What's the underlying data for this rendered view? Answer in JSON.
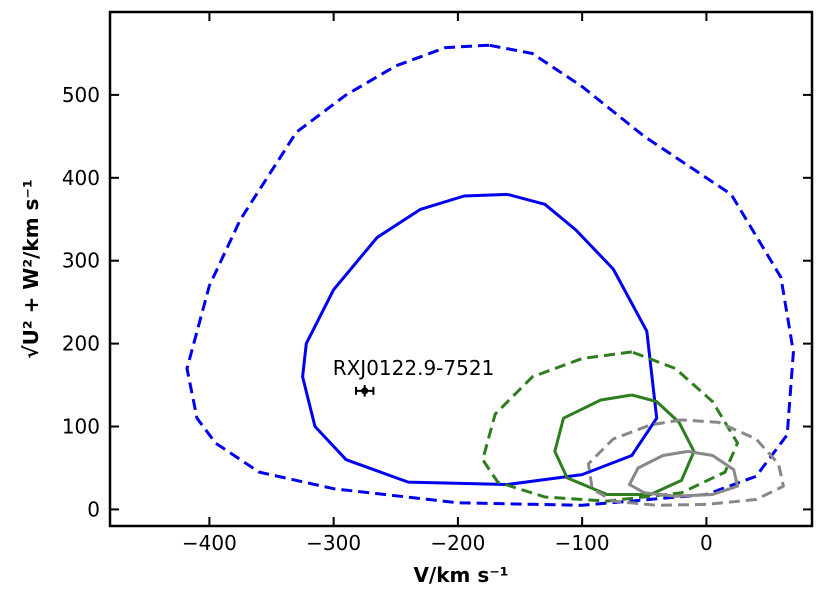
{
  "chart_data": {
    "type": "line",
    "xlabel": "V/km s⁻¹",
    "ylabel": "√U² + W²/km s⁻¹",
    "xlim": [
      -480,
      85
    ],
    "ylim": [
      -20,
      600
    ],
    "xticks": [
      -400,
      -300,
      -200,
      -100,
      0
    ],
    "xtick_labels": [
      "−400",
      "−300",
      "−200",
      "−100",
      "0"
    ],
    "yticks": [
      0,
      100,
      200,
      300,
      400,
      500
    ],
    "ytick_labels": [
      "0",
      "100",
      "200",
      "300",
      "400",
      "500"
    ],
    "grid": false,
    "series": [
      {
        "color": "#0000ee",
        "style": "dashed",
        "points": [
          [
            -175,
            560
          ],
          [
            -210,
            557
          ],
          [
            -250,
            535
          ],
          [
            -290,
            500
          ],
          [
            -330,
            455
          ],
          [
            -375,
            350
          ],
          [
            -400,
            270
          ],
          [
            -418,
            170
          ],
          [
            -410,
            110
          ],
          [
            -395,
            80
          ],
          [
            -360,
            45
          ],
          [
            -300,
            25
          ],
          [
            -200,
            8
          ],
          [
            -100,
            5
          ],
          [
            0,
            18
          ],
          [
            40,
            40
          ],
          [
            65,
            90
          ],
          [
            70,
            190
          ],
          [
            60,
            280
          ],
          [
            20,
            380
          ],
          [
            -50,
            450
          ],
          [
            -100,
            510
          ],
          [
            -140,
            550
          ],
          [
            -175,
            560
          ]
        ]
      },
      {
        "color": "#0000ee",
        "style": "solid",
        "points": [
          [
            -160,
            380
          ],
          [
            -195,
            378
          ],
          [
            -230,
            362
          ],
          [
            -265,
            328
          ],
          [
            -300,
            265
          ],
          [
            -322,
            200
          ],
          [
            -325,
            160
          ],
          [
            -315,
            100
          ],
          [
            -290,
            60
          ],
          [
            -240,
            33
          ],
          [
            -160,
            30
          ],
          [
            -100,
            42
          ],
          [
            -60,
            65
          ],
          [
            -40,
            110
          ],
          [
            -48,
            215
          ],
          [
            -75,
            290
          ],
          [
            -105,
            337
          ],
          [
            -130,
            368
          ],
          [
            -160,
            380
          ]
        ]
      },
      {
        "color": "#2e7d1e",
        "style": "dashed",
        "points": [
          [
            -60,
            190
          ],
          [
            -100,
            182
          ],
          [
            -140,
            160
          ],
          [
            -170,
            115
          ],
          [
            -180,
            60
          ],
          [
            -168,
            33
          ],
          [
            -130,
            15
          ],
          [
            -80,
            10
          ],
          [
            -20,
            20
          ],
          [
            15,
            45
          ],
          [
            25,
            80
          ],
          [
            5,
            130
          ],
          [
            -25,
            170
          ],
          [
            -60,
            190
          ]
        ]
      },
      {
        "color": "#2e7d1e",
        "style": "solid",
        "points": [
          [
            -60,
            138
          ],
          [
            -85,
            132
          ],
          [
            -115,
            110
          ],
          [
            -122,
            70
          ],
          [
            -112,
            38
          ],
          [
            -80,
            18
          ],
          [
            -45,
            18
          ],
          [
            -20,
            35
          ],
          [
            -10,
            70
          ],
          [
            -22,
            105
          ],
          [
            -40,
            130
          ],
          [
            -60,
            138
          ]
        ]
      },
      {
        "color": "#888888",
        "style": "dashed",
        "points": [
          [
            -20,
            108
          ],
          [
            -45,
            102
          ],
          [
            -75,
            85
          ],
          [
            -95,
            55
          ],
          [
            -92,
            25
          ],
          [
            -75,
            10
          ],
          [
            -40,
            5
          ],
          [
            0,
            6
          ],
          [
            40,
            12
          ],
          [
            62,
            28
          ],
          [
            58,
            55
          ],
          [
            40,
            85
          ],
          [
            10,
            105
          ],
          [
            -20,
            108
          ]
        ]
      },
      {
        "color": "#888888",
        "style": "solid",
        "points": [
          [
            -15,
            70
          ],
          [
            -35,
            65
          ],
          [
            -55,
            50
          ],
          [
            -62,
            30
          ],
          [
            -50,
            20
          ],
          [
            -25,
            16
          ],
          [
            5,
            18
          ],
          [
            25,
            28
          ],
          [
            22,
            48
          ],
          [
            5,
            65
          ],
          [
            -15,
            70
          ]
        ]
      }
    ],
    "annotations": [
      {
        "text": "RXJ0122.9-7521",
        "x": -275,
        "y": 143,
        "xerr": 7,
        "yerr": 7
      }
    ]
  }
}
